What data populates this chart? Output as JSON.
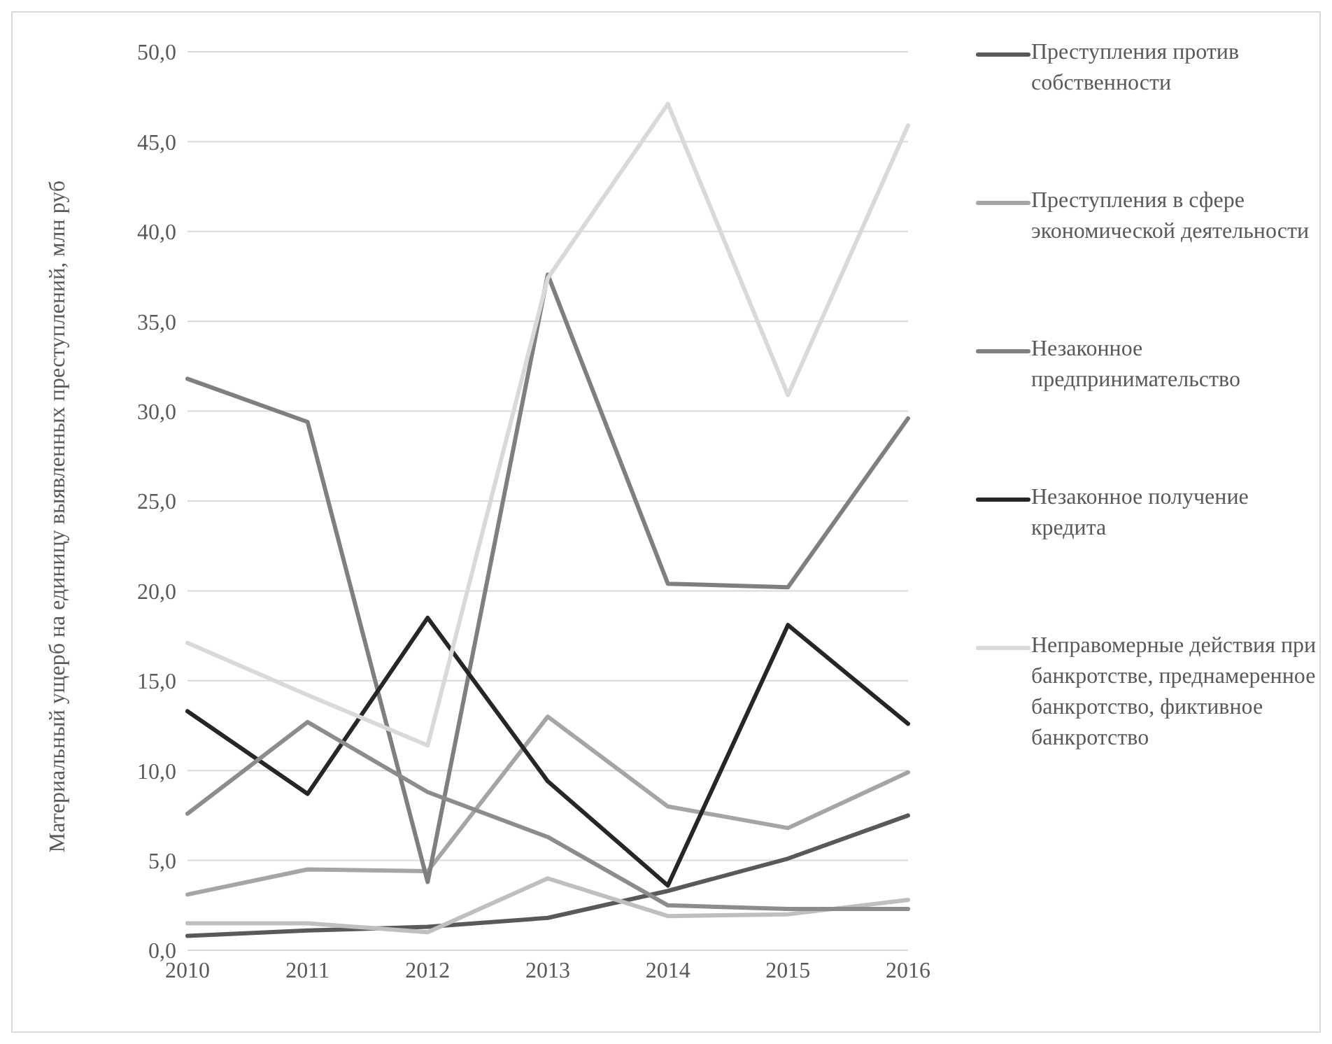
{
  "chart_data": {
    "type": "line",
    "ylabel": "Материальный ущерб на единицу выявленных преступлений, млн руб",
    "categories": [
      "2010",
      "2011",
      "2012",
      "2013",
      "2014",
      "2015",
      "2016"
    ],
    "series": [
      {
        "name": "Преступления против собственности",
        "color": "#595959",
        "values": [
          0.8,
          1.1,
          1.3,
          1.8,
          3.3,
          5.1,
          7.5
        ]
      },
      {
        "name": "Преступления в сфере экономической деятельности",
        "color": "#a5a5a5",
        "values": [
          3.1,
          4.5,
          4.4,
          13.0,
          8.0,
          6.8,
          9.9
        ]
      },
      {
        "name": "Незаконное предпринимательство",
        "color": "#7f7f7f",
        "values": [
          31.8,
          29.4,
          3.8,
          37.6,
          20.4,
          20.2,
          29.6
        ]
      },
      {
        "name": "Незаконное получение кредита",
        "color": "#262626",
        "values": [
          13.3,
          8.7,
          18.5,
          9.4,
          3.6,
          18.1,
          12.6
        ]
      },
      {
        "name": "Неправомерные действия при банкротстве, преднамеренное банкротство, фиктивное банкротство",
        "color": "#d9d9d9",
        "values": [
          17.1,
          14.2,
          11.4,
          37.4,
          47.1,
          30.9,
          45.9
        ]
      },
      {
        "color": "#bfbfbf",
        "values": [
          1.5,
          1.5,
          1.0,
          4.0,
          1.9,
          2.0,
          2.8
        ]
      },
      {
        "color": "#8c8c8c",
        "values": [
          7.6,
          12.7,
          8.8,
          6.3,
          2.5,
          2.3,
          2.3
        ]
      }
    ],
    "ylim": [
      0,
      50
    ],
    "yticks": [
      {
        "value": 0,
        "label": "0,0"
      },
      {
        "value": 5,
        "label": "5,0"
      },
      {
        "value": 10,
        "label": "10,0"
      },
      {
        "value": 15,
        "label": "15,0"
      },
      {
        "value": 20,
        "label": "20,0"
      },
      {
        "value": 25,
        "label": "25,0"
      },
      {
        "value": 30,
        "label": "30,0"
      },
      {
        "value": 35,
        "label": "35,0"
      },
      {
        "value": 40,
        "label": "40,0"
      },
      {
        "value": 45,
        "label": "45,0"
      },
      {
        "value": 50,
        "label": "50,0"
      }
    ],
    "grid": "y",
    "legend": "right",
    "marker": "none",
    "line_style": "solid"
  }
}
